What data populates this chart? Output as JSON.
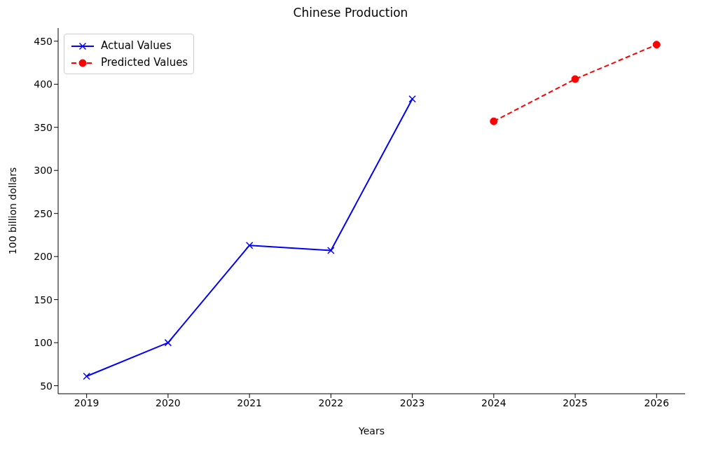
{
  "chart_data": {
    "type": "line",
    "title": "Chinese Production",
    "xlabel": "Years",
    "ylabel": "100 billion dollars",
    "series": [
      {
        "name": "Actual Values",
        "color": "#0000ff",
        "marker": "cross",
        "line_style": "solid",
        "x": [
          2019,
          2020,
          2021,
          2022,
          2023
        ],
        "values": [
          61,
          100,
          213,
          207,
          383
        ]
      },
      {
        "name": "Predicted Values",
        "color": "#ff0000",
        "marker": "circle",
        "line_style": "dashed",
        "x": [
          2024,
          2025,
          2026
        ],
        "values": [
          357,
          406,
          446
        ]
      }
    ],
    "xlim": [
      2018.65,
      2026.35
    ],
    "xticks": [
      2019,
      2020,
      2021,
      2022,
      2023,
      2024,
      2025,
      2026
    ],
    "ylim": [
      40.7,
      465.3
    ],
    "yticks": [
      50,
      100,
      150,
      200,
      250,
      300,
      350,
      400,
      450
    ],
    "legend": "top left"
  }
}
